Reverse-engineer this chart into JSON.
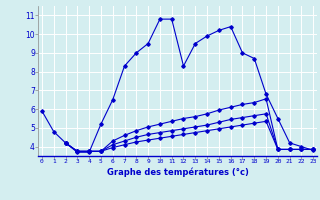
{
  "xlabel": "Graphe des températures (°c)",
  "background_color": "#d4eef0",
  "grid_color": "#ffffff",
  "line_color": "#0000cc",
  "x_ticks": [
    0,
    1,
    2,
    3,
    4,
    5,
    6,
    7,
    8,
    9,
    10,
    11,
    12,
    13,
    14,
    15,
    16,
    17,
    18,
    19,
    20,
    21,
    22,
    23
  ],
  "y_ticks": [
    4,
    5,
    6,
    7,
    8,
    9,
    10,
    11
  ],
  "ylim": [
    3.5,
    11.5
  ],
  "xlim": [
    -0.3,
    23.3
  ],
  "series": [
    {
      "x": [
        0,
        1,
        2,
        3,
        4,
        5,
        6,
        7,
        8,
        9,
        10,
        11,
        12,
        13,
        14,
        15,
        16,
        17,
        18,
        19,
        20,
        21,
        22,
        23
      ],
      "y": [
        5.9,
        4.8,
        4.2,
        3.7,
        3.7,
        5.2,
        6.5,
        8.3,
        9.0,
        9.5,
        10.8,
        10.8,
        8.3,
        9.5,
        9.9,
        10.2,
        10.4,
        9.0,
        8.7,
        6.8,
        5.5,
        4.2,
        4.0,
        3.8
      ]
    },
    {
      "x": [
        2,
        3,
        4,
        5,
        6,
        7,
        8,
        9,
        10,
        11,
        12,
        13,
        14,
        15,
        16,
        17,
        18,
        19,
        20,
        21,
        22,
        23
      ],
      "y": [
        4.2,
        3.75,
        3.75,
        3.75,
        4.3,
        4.6,
        4.85,
        5.05,
        5.2,
        5.35,
        5.5,
        5.6,
        5.75,
        5.95,
        6.1,
        6.25,
        6.35,
        6.55,
        3.85,
        3.85,
        3.85,
        3.85
      ]
    },
    {
      "x": [
        2,
        3,
        4,
        5,
        6,
        7,
        8,
        9,
        10,
        11,
        12,
        13,
        14,
        15,
        16,
        17,
        18,
        19,
        20,
        21,
        22,
        23
      ],
      "y": [
        4.2,
        3.75,
        3.75,
        3.75,
        4.1,
        4.3,
        4.5,
        4.65,
        4.75,
        4.85,
        4.95,
        5.05,
        5.15,
        5.3,
        5.45,
        5.55,
        5.65,
        5.75,
        3.85,
        3.85,
        3.85,
        3.85
      ]
    },
    {
      "x": [
        2,
        3,
        4,
        5,
        6,
        7,
        8,
        9,
        10,
        11,
        12,
        13,
        14,
        15,
        16,
        17,
        18,
        19,
        20,
        21,
        22,
        23
      ],
      "y": [
        4.2,
        3.75,
        3.75,
        3.75,
        3.95,
        4.1,
        4.25,
        4.35,
        4.45,
        4.55,
        4.65,
        4.75,
        4.85,
        4.95,
        5.05,
        5.15,
        5.25,
        5.35,
        3.85,
        3.85,
        3.85,
        3.85
      ]
    }
  ]
}
